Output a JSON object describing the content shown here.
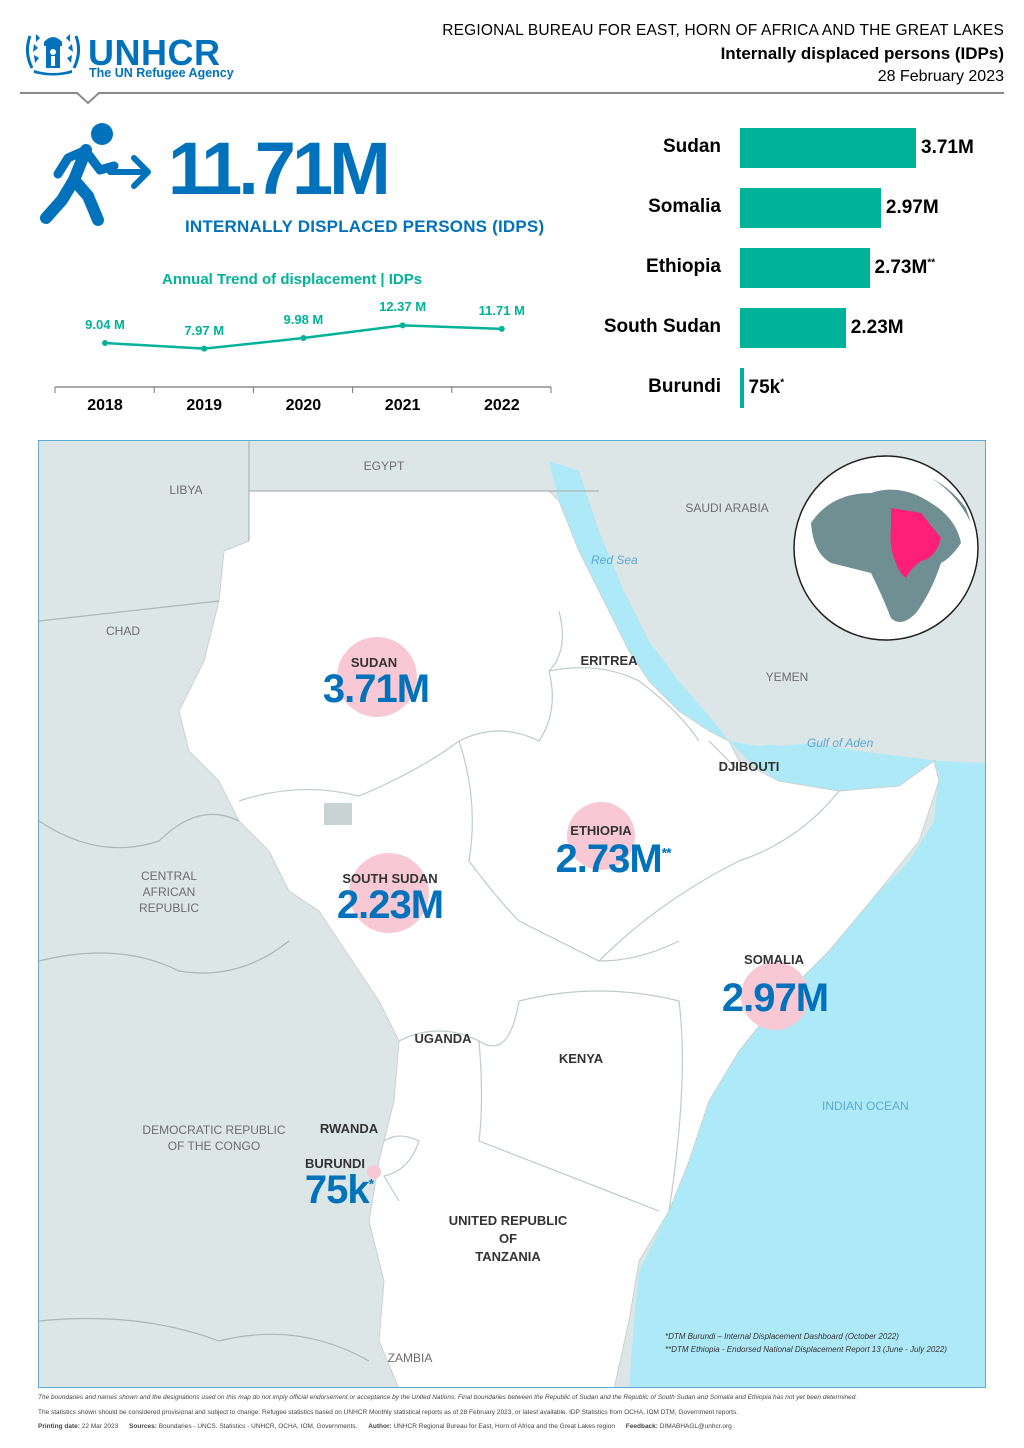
{
  "header": {
    "logo_name": "UNHCR",
    "logo_sub": "The UN Refugee Agency",
    "line1": "REGIONAL BUREAU FOR EAST, HORN OF AFRICA AND THE GREAT LAKES",
    "line2": "Internally displaced persons (IDPs)",
    "date": "28 February 2023"
  },
  "total": {
    "value": "11.71M",
    "label": "INTERNALLY DISPLACED PERSONS (IDPS)"
  },
  "trend": {
    "title": "Annual Trend of displacement | IDPs",
    "points": [
      {
        "year": "2018",
        "label": "9.04 M",
        "value": 9.04
      },
      {
        "year": "2019",
        "label": "7.97 M",
        "value": 7.97
      },
      {
        "year": "2020",
        "label": "9.98 M",
        "value": 9.98
      },
      {
        "year": "2021",
        "label": "12.37 M",
        "value": 12.37
      },
      {
        "year": "2022",
        "label": "11.71 M",
        "value": 11.71
      }
    ]
  },
  "chart_data": {
    "type": "bar",
    "categories": [
      "Sudan",
      "Somalia",
      "Ethiopia",
      "South Sudan",
      "Burundi"
    ],
    "values": [
      3.71,
      2.97,
      2.73,
      2.23,
      0.075
    ],
    "value_labels": [
      "3.71M",
      "2.97M",
      "2.73M",
      "2.23M",
      "75k"
    ],
    "value_marks": [
      "",
      "",
      "**",
      "",
      "*"
    ],
    "unit": "M",
    "color": "#00b398"
  },
  "map": {
    "countries": {
      "egypt": "EGYPT",
      "libya": "LIBYA",
      "chad": "CHAD",
      "saudi": "SAUDI ARABIA",
      "yemen": "YEMEN",
      "eritrea": "ERITREA",
      "djibouti": "DJIBOUTI",
      "car": [
        "CENTRAL",
        "AFRICAN",
        "REPUBLIC"
      ],
      "drc": [
        "DEMOCRATIC REPUBLIC",
        "OF THE CONGO"
      ],
      "uganda": "UGANDA",
      "kenya": "KENYA",
      "rwanda": "RWANDA",
      "tanzania": [
        "UNITED REPUBLIC",
        "OF",
        "TANZANIA"
      ],
      "zambia": "ZAMBIA"
    },
    "seas": {
      "red_sea": "Red Sea",
      "gulf_aden": "Gulf of Aden",
      "indian_ocean": "INDIAN OCEAN"
    },
    "values": {
      "sudan": {
        "name": "SUDAN",
        "value": "3.71M",
        "mark": ""
      },
      "south_sudan": {
        "name": "SOUTH SUDAN",
        "value": "2.23M",
        "mark": ""
      },
      "ethiopia": {
        "name": "ETHIOPIA",
        "value": "2.73M",
        "mark": "**"
      },
      "somalia": {
        "name": "SOMALIA",
        "value": "2.97M",
        "mark": ""
      },
      "burundi": {
        "name": "BURUNDI",
        "value": "75k",
        "mark": "*"
      }
    },
    "notes": [
      "*DTM Burundi – Internal Displacement Dashboard (October 2022)",
      "**DTM Ethiopia - Endorsed National Displacement Report 13 (June - July 2022)"
    ],
    "colors": {
      "land_focus": "#ffffff",
      "land_other": "#dde6e6",
      "water": "#aee9f8",
      "highlight": "#ff1e78",
      "bubble": "#f8c8d4"
    }
  },
  "footer": {
    "disclaimer": "The boundaries and names shown and the designations used on this map do not imply official endorsement or acceptance by the United Nations. Final boundaries between the Republic of Sudan and the Republic of South Sudan and Somalia and Ethiopia has not yet been determined.",
    "stats": "The statistics shown should be considered provisional and subject to change. Refugee statistics based on UNHCR Monthly statistical reports as of 28 February 2023, or latest available. IDP Statistics from OCHA, IOM DTM, Government reports.",
    "printing_label": "Printing date:",
    "printing_value": "22 Mar 2023",
    "sources_label": "Sources:",
    "sources_value": "Boundaries - UNCS. Statistics - UNHCR, OCHA, IOM, Governments.",
    "author_label": "Author:",
    "author_value": "UNHCR Regional Bureau for East, Horn of Africa and the Great Lakes region",
    "feedback_label": "Feedback:",
    "feedback_value": "DIMABHAGL@unhcr.org"
  }
}
